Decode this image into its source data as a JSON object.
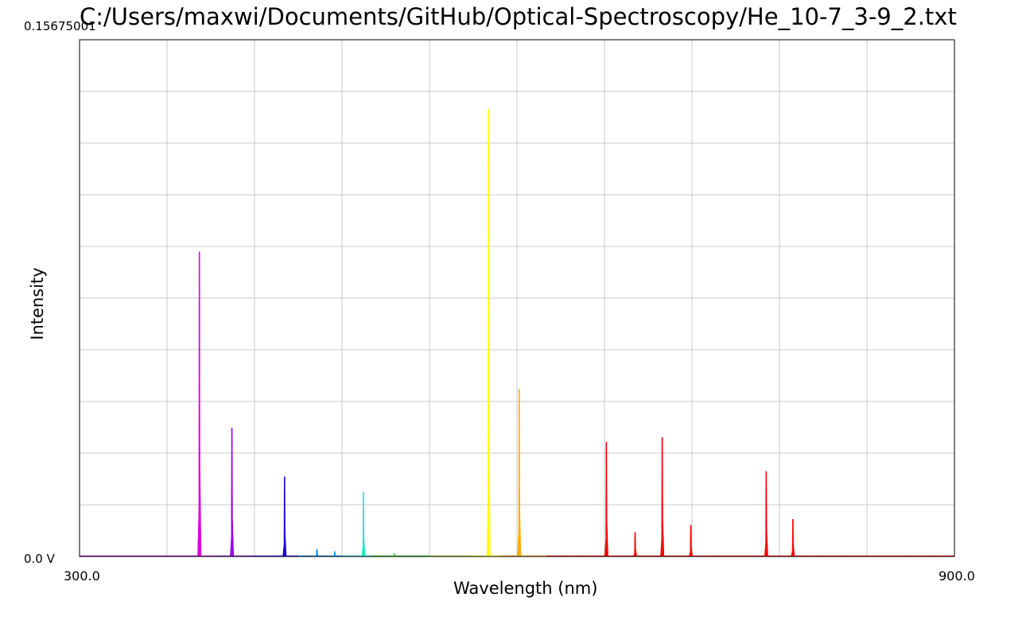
{
  "chart_data": {
    "type": "line",
    "title": "C:/Users/maxwi/Documents/GitHub/Optical-Spectroscopy/He_10-7_3-9_2.txt",
    "xlabel": "Wavelength (nm)",
    "ylabel": "Intensity",
    "xlim": [
      300.0,
      900.0
    ],
    "ylim": [
      0.0,
      0.15675001
    ],
    "y_min_label": "0.0 V",
    "y_max_label": "0.15675001",
    "x_min_label": "300.0",
    "x_max_label": "900.0",
    "grid": true,
    "x_grid_step": 60,
    "y_grid_divisions": 10,
    "peaks": [
      {
        "x": 382.2,
        "y": 0.0924,
        "color": "#dd00dd"
      },
      {
        "x": 404.5,
        "y": 0.039,
        "color": "#9900ee"
      },
      {
        "x": 440.6,
        "y": 0.0242,
        "color": "#1a00dd"
      },
      {
        "x": 462.8,
        "y": 0.0022,
        "color": "#0088ee"
      },
      {
        "x": 475.0,
        "y": 0.0015,
        "color": "#0099ee"
      },
      {
        "x": 494.7,
        "y": 0.0196,
        "color": "#22e8c8"
      },
      {
        "x": 516.0,
        "y": 0.0009,
        "color": "#33dd33"
      },
      {
        "x": 580.5,
        "y": 0.1357,
        "color": "#ffff00"
      },
      {
        "x": 601.5,
        "y": 0.0508,
        "color": "#ffaa00"
      },
      {
        "x": 661.3,
        "y": 0.0347,
        "color": "#ff0000"
      },
      {
        "x": 681.0,
        "y": 0.0073,
        "color": "#ff0000"
      },
      {
        "x": 699.6,
        "y": 0.0361,
        "color": "#ff0000"
      },
      {
        "x": 719.2,
        "y": 0.0095,
        "color": "#ff0000"
      },
      {
        "x": 770.9,
        "y": 0.0258,
        "color": "#ff0000"
      },
      {
        "x": 789.2,
        "y": 0.0113,
        "color": "#ff0000"
      }
    ]
  }
}
